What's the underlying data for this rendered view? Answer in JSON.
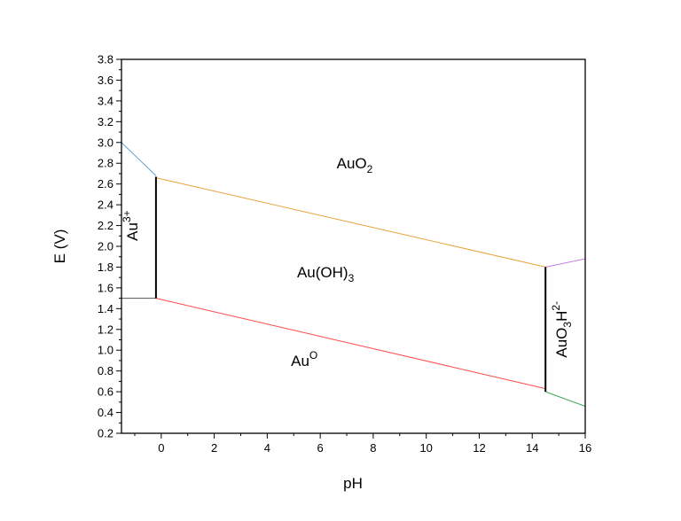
{
  "chart_data": {
    "type": "line",
    "title": "",
    "xlabel": "pH",
    "ylabel": "E (V)",
    "xlim": [
      -1.5,
      16
    ],
    "ylim": [
      0.2,
      3.8
    ],
    "xticks": [
      0,
      2,
      4,
      6,
      8,
      10,
      12,
      14,
      16
    ],
    "yticks": [
      0.2,
      0.4,
      0.6,
      0.8,
      1.0,
      1.2,
      1.4,
      1.6,
      1.8,
      2.0,
      2.2,
      2.4,
      2.6,
      2.8,
      3.0,
      3.2,
      3.4,
      3.6,
      3.8
    ],
    "grid": false,
    "legend": "none",
    "lines": [
      {
        "color": "#5b9bd5",
        "x": [
          -1.5,
          -0.2
        ],
        "y": [
          3.0,
          2.68
        ]
      },
      {
        "color": "#e8a33a",
        "x": [
          -0.2,
          14.5
        ],
        "y": [
          2.66,
          1.8
        ]
      },
      {
        "color": "#c77ce0",
        "x": [
          14.5,
          16
        ],
        "y": [
          1.8,
          1.88
        ]
      },
      {
        "color": "#555555",
        "x": [
          -1.5,
          -0.2
        ],
        "y": [
          1.5,
          1.5
        ]
      },
      {
        "color": "#ff4a4a",
        "x": [
          -0.2,
          14.5
        ],
        "y": [
          1.5,
          0.63
        ]
      },
      {
        "color": "#3aa655",
        "x": [
          14.5,
          16
        ],
        "y": [
          0.6,
          0.46
        ]
      },
      {
        "color": "#000000",
        "x": [
          -0.2,
          -0.2
        ],
        "y": [
          1.5,
          2.67
        ],
        "bold": true
      },
      {
        "color": "#000000",
        "x": [
          14.5,
          14.5
        ],
        "y": [
          0.6,
          1.8
        ],
        "bold": true
      }
    ],
    "regions": [
      {
        "base": "AuO",
        "sub": "2",
        "sup": "",
        "x": 7.3,
        "y": 2.75,
        "rotate": 0
      },
      {
        "base": "Au(OH)",
        "sub": "3",
        "sup": "",
        "x": 6.2,
        "y": 1.7,
        "rotate": 0
      },
      {
        "base": "Au",
        "sub": "",
        "sup": "O",
        "x": 5.4,
        "y": 0.85,
        "rotate": 0
      },
      {
        "base": "Au",
        "sub": "",
        "sup": "3+",
        "x": -0.9,
        "y": 2.2,
        "rotate": -90
      },
      {
        "base": "AuO",
        "sub": "3",
        "sup": "",
        "tail": "H",
        "tailsup": "2-",
        "x": 15.3,
        "y": 1.2,
        "rotate": -90
      }
    ]
  }
}
